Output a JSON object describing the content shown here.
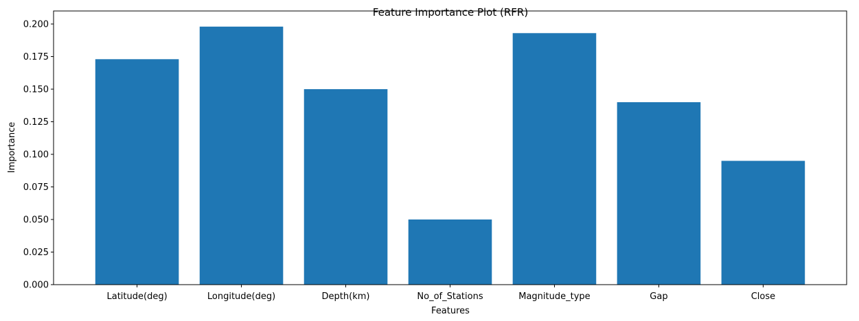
{
  "chart_data": {
    "type": "bar",
    "title": "Feature Importance Plot (RFR)",
    "xlabel": "Features",
    "ylabel": "Importance",
    "categories": [
      "Latitude(deg)",
      "Longitude(deg)",
      "Depth(km)",
      "No_of_Stations",
      "Magnitude_type",
      "Gap",
      "Close"
    ],
    "values": [
      0.173,
      0.198,
      0.15,
      0.05,
      0.193,
      0.14,
      0.095
    ],
    "ylim": [
      0,
      0.21
    ],
    "yticks": [
      0.0,
      0.025,
      0.05,
      0.075,
      0.1,
      0.125,
      0.15,
      0.175,
      0.2
    ],
    "ytick_labels": [
      "0.000",
      "0.025",
      "0.050",
      "0.075",
      "0.100",
      "0.125",
      "0.150",
      "0.175",
      "0.200"
    ],
    "grid": false,
    "bar_color": "#1f77b4"
  }
}
